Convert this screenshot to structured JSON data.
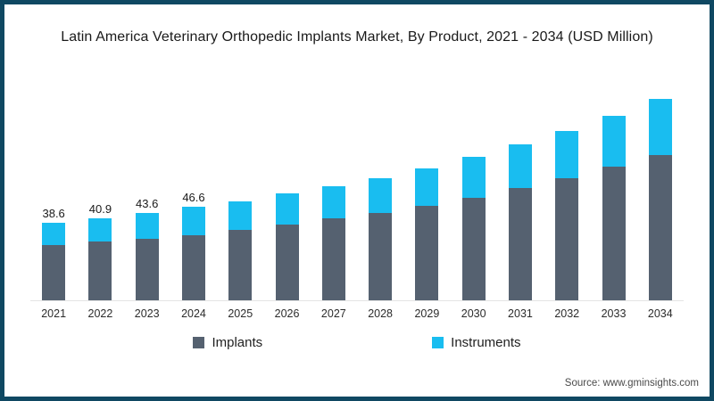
{
  "chart_data": {
    "type": "bar",
    "stacked": true,
    "title": "Latin America  Veterinary Orthopedic Implants Market, By Product, 2021 - 2034 (USD Million)",
    "categories": [
      "2021",
      "2022",
      "2023",
      "2024",
      "2025",
      "2026",
      "2027",
      "2028",
      "2029",
      "2030",
      "2031",
      "2032",
      "2033",
      "2034"
    ],
    "series": [
      {
        "name": "Implants",
        "color": "#556170",
        "values": [
          27.6,
          29.2,
          30.9,
          32.5,
          35.2,
          37.7,
          40.7,
          43.6,
          47.3,
          51.3,
          55.9,
          60.7,
          66.6,
          72.5
        ]
      },
      {
        "name": "Instruments",
        "color": "#19BDF0",
        "values": [
          11.0,
          11.7,
          12.7,
          14.1,
          14.1,
          15.6,
          16.3,
          17.3,
          18.5,
          20.1,
          21.8,
          23.7,
          25.5,
          28.1
        ]
      }
    ],
    "totals": [
      38.6,
      40.9,
      43.6,
      46.6,
      49.3,
      53.3,
      57.0,
      60.9,
      65.8,
      71.4,
      77.7,
      84.4,
      92.1,
      100.6
    ],
    "bar_total_labels": [
      "38.6",
      "40.9",
      "43.6",
      "46.6",
      "",
      "",
      "",
      "",
      "",
      "",
      "",
      "",
      "",
      ""
    ],
    "xlabel": "",
    "ylabel": "",
    "ylim": [
      0,
      105
    ],
    "grid": false,
    "legend_position": "bottom"
  },
  "source": "Source: www.gminsights.com"
}
